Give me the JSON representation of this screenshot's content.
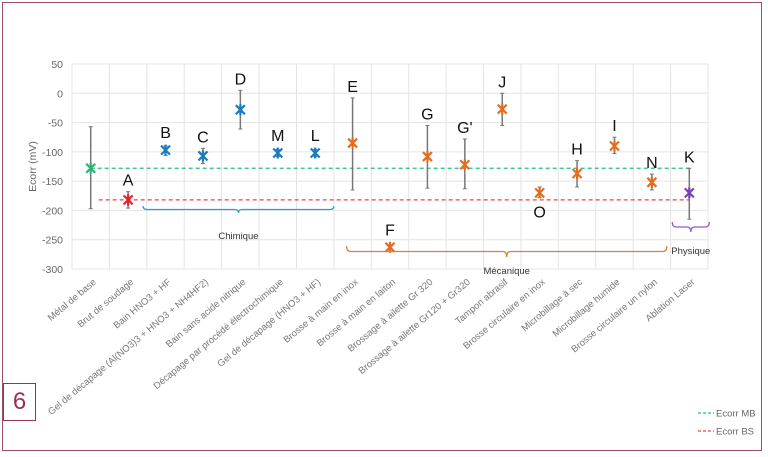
{
  "badge": "6",
  "chart_data": {
    "type": "scatter",
    "title": "",
    "xlabel": "",
    "ylabel": "Ecorr (mV)",
    "ylim": [
      -300,
      50
    ],
    "yticks": [
      50,
      0,
      -50,
      -100,
      -150,
      -200,
      -250,
      -300
    ],
    "grid": true,
    "categories": [
      "Métal de base",
      "Brut de soudage",
      "Bain HNO3 + HF",
      "Gel de décapage (Al(NO3)3 + HNO3 + NH4HF2)",
      "Bain sans acide nitrique",
      "Décapage par procédé électrochimique",
      "Gel de décapage (HNO3 + HF)",
      "Brosse à main en inox",
      "Brosse à main en laiton",
      "Brossage à ailette Gr 320",
      "Brossage à ailette Gr120 + Gr320",
      "Tampon abrasif",
      "Brosse circulaire en inox",
      "Microbillage à sec",
      "Microbillage humide",
      "Brosse circulaire un nylon",
      "Ablation Laser"
    ],
    "points": [
      {
        "label": "",
        "value": -128,
        "err_high": -57,
        "err_low": -197,
        "color": "#22b573",
        "placement": "above"
      },
      {
        "label": "A",
        "value": -182,
        "err_high": -168,
        "err_low": -196,
        "color": "#e8202a",
        "placement": "above"
      },
      {
        "label": "B",
        "value": -97,
        "err_high": -90,
        "err_low": -106,
        "color": "#1b7bc0",
        "placement": "above"
      },
      {
        "label": "C",
        "value": -107,
        "err_high": -94,
        "err_low": -120,
        "color": "#1b7bc0",
        "placement": "above"
      },
      {
        "label": "D",
        "value": -28,
        "err_high": 5,
        "err_low": -61,
        "color": "#1b7bc0",
        "placement": "above"
      },
      {
        "label": "M",
        "value": -102,
        "err_high": -96,
        "err_low": -108,
        "color": "#1b7bc0",
        "placement": "above"
      },
      {
        "label": "L",
        "value": -102,
        "err_high": -96,
        "err_low": -108,
        "color": "#1b7bc0",
        "placement": "above"
      },
      {
        "label": "E",
        "value": -85,
        "err_high": -8,
        "err_low": -165,
        "color": "#e46c1f",
        "placement": "above"
      },
      {
        "label": "F",
        "value": -263,
        "err_high": -260,
        "err_low": -266,
        "color": "#e46c1f",
        "placement": "above"
      },
      {
        "label": "G",
        "value": -108,
        "err_high": -55,
        "err_low": -162,
        "color": "#e46c1f",
        "placement": "above"
      },
      {
        "label": "G'",
        "value": -122,
        "err_high": -78,
        "err_low": -163,
        "color": "#e46c1f",
        "placement": "above"
      },
      {
        "label": "J",
        "value": -27,
        "err_high": 0,
        "err_low": -55,
        "color": "#e46c1f",
        "placement": "above"
      },
      {
        "label": "O",
        "value": -170,
        "err_high": -160,
        "err_low": -178,
        "color": "#e46c1f",
        "placement": "below"
      },
      {
        "label": "H",
        "value": -137,
        "err_high": -115,
        "err_low": -160,
        "color": "#e46c1f",
        "placement": "above"
      },
      {
        "label": "I",
        "value": -90,
        "err_high": -75,
        "err_low": -103,
        "color": "#e46c1f",
        "placement": "above"
      },
      {
        "label": "N",
        "value": -152,
        "err_high": -138,
        "err_low": -165,
        "color": "#e46c1f",
        "placement": "above"
      },
      {
        "label": "K",
        "value": -170,
        "err_high": -128,
        "err_low": -215,
        "color": "#7b3fb5",
        "placement": "above"
      }
    ],
    "reference_lines": [
      {
        "name": "Ecorr MB",
        "value": -128,
        "color": "#22c08a"
      },
      {
        "name": "Ecorr BS",
        "value": -182,
        "color": "#f0404a"
      }
    ],
    "groups": [
      {
        "name": "Chimique",
        "from": 2,
        "to": 6,
        "color": "#2c9fd4"
      },
      {
        "name": "Mécanique",
        "from": 7,
        "to": 15,
        "color": "#d9803e"
      },
      {
        "name": "Physique",
        "from": 16,
        "to": 16,
        "color": "#9b59c9"
      }
    ],
    "legend_placement": "bottom-right"
  }
}
